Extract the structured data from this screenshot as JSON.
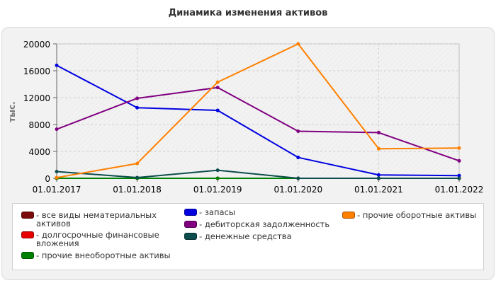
{
  "chart_data": {
    "type": "line",
    "title": "Динамика изменения активов",
    "ylabel": "тыс.",
    "xlabel": "",
    "categories": [
      "01.01.2017",
      "01.01.2018",
      "01.01.2019",
      "01.01.2020",
      "01.01.2021",
      "01.01.2022"
    ],
    "ylim": [
      0,
      20000
    ],
    "yticks": [
      0,
      4000,
      8000,
      12000,
      16000,
      20000
    ],
    "grid": true,
    "legend_position": "bottom",
    "series": [
      {
        "name": "все виды нематериальных активов",
        "color": "#7b0a0a",
        "values": [
          0,
          0,
          0,
          0,
          0,
          0
        ]
      },
      {
        "name": "долгосрочные финансовые вложения",
        "color": "#e60000",
        "values": [
          0,
          0,
          0,
          0,
          0,
          0
        ]
      },
      {
        "name": "прочие внеоборотные активы",
        "color": "#008000",
        "values": [
          0,
          0,
          0,
          0,
          0,
          0
        ]
      },
      {
        "name": "запасы",
        "color": "#0000e0",
        "values": [
          16800,
          10500,
          10100,
          3100,
          500,
          400
        ]
      },
      {
        "name": "дебиторская задолженность",
        "color": "#800080",
        "values": [
          7300,
          11900,
          13500,
          7000,
          6800,
          2600
        ]
      },
      {
        "name": "денежные средства",
        "color": "#0d4d4d",
        "values": [
          1000,
          100,
          1200,
          0,
          0,
          0
        ]
      },
      {
        "name": "прочие оборотные активы",
        "color": "#ff8000",
        "values": [
          100,
          2200,
          14300,
          20000,
          4400,
          4500
        ]
      }
    ]
  }
}
